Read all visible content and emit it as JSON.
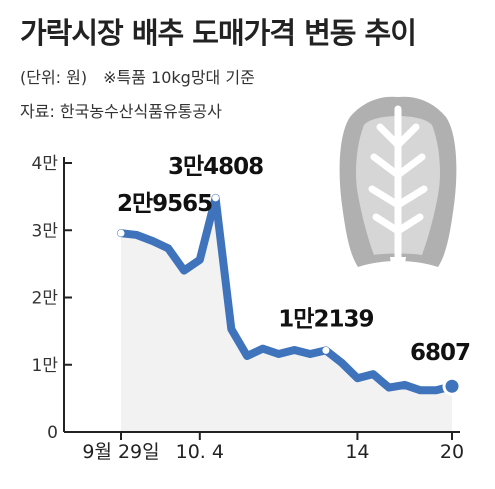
{
  "title": "가락시장 배추 도매가격 변동 추이",
  "unit_text": "(단위: 원)",
  "note_text": "※특품 10kg망대 기준",
  "source_text": "자료: 한국농수산식품유통공사",
  "colors": {
    "line": "#3f73bb",
    "area": "#f2f2f2",
    "icon": "#b0b0b0",
    "axis": "#222222"
  },
  "icon": "cabbage-icon",
  "chart_data": {
    "type": "area",
    "title": "가락시장 배추 도매가격 변동 추이",
    "unit": "원",
    "ylim": [
      0,
      40000
    ],
    "yticks": [
      {
        "value": 0,
        "label": "0"
      },
      {
        "value": 10000,
        "label": "1만"
      },
      {
        "value": 20000,
        "label": "2만"
      },
      {
        "value": 30000,
        "label": "3만"
      },
      {
        "value": 40000,
        "label": "4만"
      }
    ],
    "xlim": [
      0,
      21
    ],
    "xticks": [
      {
        "x": 0,
        "label": "9월 29일"
      },
      {
        "x": 5,
        "label": "10. 4"
      },
      {
        "x": 15,
        "label": "14"
      },
      {
        "x": 21,
        "label": "20"
      }
    ],
    "series": [
      {
        "x": [
          0,
          1,
          2,
          3,
          4,
          5,
          6,
          7,
          8,
          9,
          10,
          11,
          12,
          13,
          14,
          15,
          16,
          17,
          18,
          19,
          20,
          21
        ],
        "values": [
          29565,
          29300,
          28400,
          27300,
          24000,
          25600,
          34808,
          15300,
          11300,
          12400,
          11600,
          12200,
          11600,
          12139,
          10300,
          8000,
          8600,
          6600,
          7000,
          6200,
          6200,
          6807
        ]
      }
    ],
    "annotations": [
      {
        "x": 0,
        "value": 29565,
        "label": "2만9565"
      },
      {
        "x": 6,
        "value": 34808,
        "label": "3만4808"
      },
      {
        "x": 13,
        "value": 12139,
        "label": "1만2139"
      },
      {
        "x": 21,
        "value": 6807,
        "label": "6807"
      }
    ]
  }
}
